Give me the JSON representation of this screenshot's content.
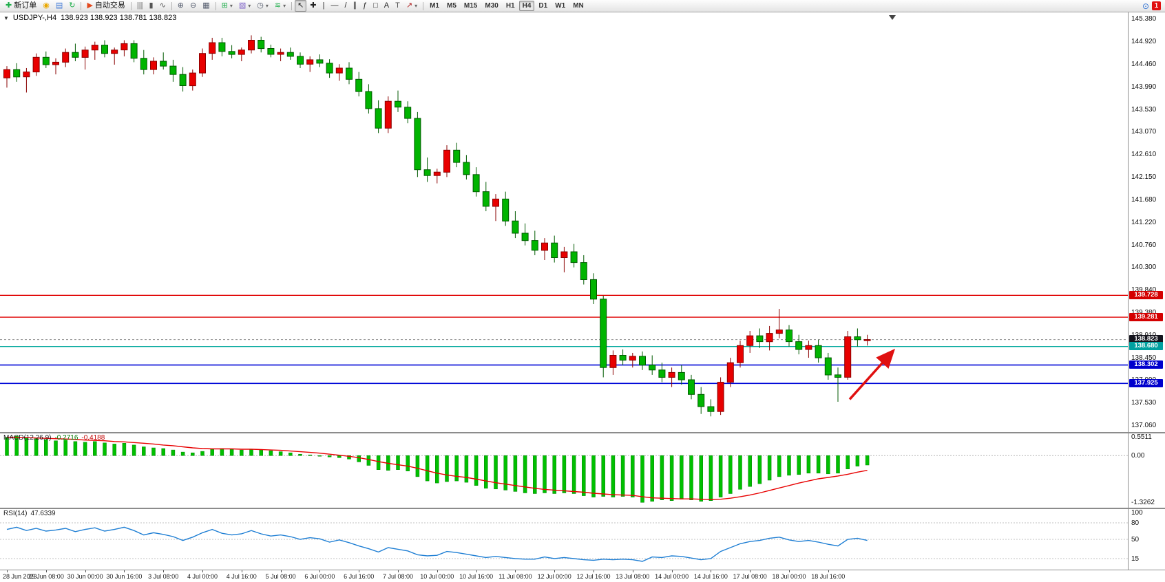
{
  "toolbar": {
    "buttons": [
      {
        "name": "new-order",
        "glyph": "✚",
        "color": "#1fae4b",
        "label": "新订单"
      },
      {
        "name": "chart-lightbulb",
        "glyph": "◉",
        "color": "#eaa800"
      },
      {
        "name": "profiles",
        "glyph": "▤",
        "color": "#3a76d6"
      },
      {
        "name": "refresh",
        "glyph": "↻",
        "color": "#1fae4b"
      },
      {
        "name": "autotrade",
        "glyph": "▶",
        "color": "#e34a1f",
        "label": "自动交易",
        "sep": true
      },
      {
        "name": "bar-chart-mode",
        "glyph": "|||",
        "color": "#555555",
        "sep": true
      },
      {
        "name": "candlestick-mode",
        "glyph": "▮",
        "color": "#555555"
      },
      {
        "name": "line-chart-mode",
        "glyph": "∿",
        "color": "#555555"
      },
      {
        "name": "zoom-in",
        "glyph": "⊕",
        "color": "#50586a",
        "sep": true
      },
      {
        "name": "zoom-out",
        "glyph": "⊖",
        "color": "#50586a"
      },
      {
        "name": "tile-windows",
        "glyph": "▦",
        "color": "#50586a"
      },
      {
        "name": "new-chart",
        "glyph": "⊞",
        "color": "#1fae4b",
        "dd": true,
        "sep": true
      },
      {
        "name": "chart-templates",
        "glyph": "▧",
        "color": "#7a5cc6",
        "dd": true
      },
      {
        "name": "periods",
        "glyph": "◷",
        "color": "#50586a",
        "dd": true
      },
      {
        "name": "indicators",
        "glyph": "≋",
        "color": "#1fae4b",
        "dd": true
      },
      {
        "name": "cursor-tool",
        "glyph": "↖",
        "color": "#222222",
        "sep": true,
        "active": true
      },
      {
        "name": "crosshair-tool",
        "glyph": "✚",
        "color": "#222222"
      },
      {
        "name": "vertical-line-tool",
        "glyph": "|",
        "color": "#222222"
      },
      {
        "name": "horizontal-line-tool",
        "glyph": "—",
        "color": "#222222"
      },
      {
        "name": "trendline-tool",
        "glyph": "/",
        "color": "#222222"
      },
      {
        "name": "channel-tool",
        "glyph": "∥",
        "color": "#222222"
      },
      {
        "name": "fibonacci-tool",
        "glyph": "ƒ",
        "color": "#222222"
      },
      {
        "name": "shapes-tool",
        "glyph": "□",
        "color": "#222222"
      },
      {
        "name": "text-tool",
        "glyph": "A",
        "color": "#222222"
      },
      {
        "name": "text-label-tool",
        "glyph": "T",
        "color": "#555555"
      },
      {
        "name": "arrows-tool",
        "glyph": "↗",
        "color": "#b02020",
        "dd": true
      }
    ],
    "timeframes": [
      "M1",
      "M5",
      "M15",
      "M30",
      "H1",
      "H4",
      "D1",
      "W1",
      "MN"
    ],
    "active_timeframe": "H4",
    "right": {
      "search_glyph": "⊙",
      "badge": "1"
    }
  },
  "chart": {
    "collapse_glyph": "▼",
    "symbol_period": "USDJPY-,H4",
    "ohlc_text": "138.923 138.923 138.781 138.823",
    "up_color": "#e80000",
    "up_border": "#8a0000",
    "down_color": "#00b400",
    "down_border": "#005a00",
    "price_axis": [
      "145.380",
      "144.920",
      "144.460",
      "143.990",
      "143.530",
      "143.070",
      "142.610",
      "142.150",
      "141.680",
      "141.220",
      "140.760",
      "140.300",
      "139.840",
      "139.380",
      "138.910",
      "138.450",
      "137.990",
      "137.530",
      "137.060"
    ],
    "price_tags": [
      {
        "text": "139.728",
        "price": 139.728,
        "bg": "#d40000"
      },
      {
        "text": "139.281",
        "price": 139.281,
        "bg": "#d40000"
      },
      {
        "text": "138.823",
        "price": 138.823,
        "bg": "#14141d"
      },
      {
        "text": "138.680",
        "price": 138.68,
        "bg": "#00a0a0"
      },
      {
        "text": "138.302",
        "price": 138.302,
        "bg": "#0000cd"
      },
      {
        "text": "137.925",
        "price": 137.925,
        "bg": "#0000cd"
      }
    ]
  },
  "macd": {
    "name": "MACD(12,26,9)",
    "value_main": "-0.2716",
    "value_signal": "-0.4188",
    "axis": [
      {
        "text": "0.5511",
        "value": 0.5511
      },
      {
        "text": "0.00",
        "value": 0
      },
      {
        "text": "-1.3262",
        "value": -1.3262
      }
    ]
  },
  "rsi": {
    "name": "RSI(14)",
    "value": "47.6339",
    "axis": [
      {
        "text": "100",
        "value": 100
      },
      {
        "text": "80",
        "value": 80
      },
      {
        "text": "50",
        "value": 50
      },
      {
        "text": "15",
        "value": 15
      }
    ]
  },
  "chart_data": {
    "type": "candlestick",
    "symbol": "USDJPY",
    "timeframe": "H4",
    "price_range": [
      136.93,
      145.52
    ],
    "bid": 138.823,
    "hlines": [
      {
        "price": 139.728,
        "color": "#e00000",
        "width": 1.4
      },
      {
        "price": 139.281,
        "color": "#e00000",
        "width": 1.4
      },
      {
        "price": 138.68,
        "color": "#00a89c",
        "width": 1.4
      },
      {
        "price": 138.302,
        "color": "#0008d8",
        "width": 1.6
      },
      {
        "price": 137.925,
        "color": "#0008d8",
        "width": 1.6
      }
    ],
    "arrow": {
      "from_bar": 86.2,
      "from_price": 137.6,
      "to_bar": 90.6,
      "to_price": 138.58,
      "color": "#e01010"
    },
    "ohlc": [
      [
        144.18,
        144.42,
        143.98,
        144.35
      ],
      [
        144.35,
        144.48,
        144.1,
        144.2
      ],
      [
        144.2,
        144.38,
        143.88,
        144.3
      ],
      [
        144.3,
        144.68,
        144.22,
        144.6
      ],
      [
        144.6,
        144.72,
        144.38,
        144.45
      ],
      [
        144.45,
        144.58,
        144.25,
        144.5
      ],
      [
        144.5,
        144.78,
        144.4,
        144.7
      ],
      [
        144.7,
        144.88,
        144.52,
        144.6
      ],
      [
        144.6,
        144.82,
        144.35,
        144.75
      ],
      [
        144.75,
        144.92,
        144.55,
        144.85
      ],
      [
        144.85,
        144.95,
        144.6,
        144.68
      ],
      [
        144.68,
        144.8,
        144.45,
        144.75
      ],
      [
        144.75,
        144.95,
        144.62,
        144.88
      ],
      [
        144.88,
        144.95,
        144.5,
        144.58
      ],
      [
        144.58,
        144.75,
        144.25,
        144.35
      ],
      [
        144.35,
        144.6,
        144.25,
        144.52
      ],
      [
        144.52,
        144.7,
        144.35,
        144.42
      ],
      [
        144.42,
        144.55,
        144.1,
        144.25
      ],
      [
        144.25,
        144.4,
        143.9,
        144.02
      ],
      [
        144.02,
        144.35,
        143.92,
        144.28
      ],
      [
        144.28,
        144.78,
        144.2,
        144.68
      ],
      [
        144.68,
        145.0,
        144.55,
        144.9
      ],
      [
        144.9,
        145.0,
        144.62,
        144.72
      ],
      [
        144.72,
        144.85,
        144.58,
        144.66
      ],
      [
        144.66,
        144.8,
        144.52,
        144.75
      ],
      [
        144.75,
        145.05,
        144.68,
        144.95
      ],
      [
        144.95,
        145.02,
        144.7,
        144.78
      ],
      [
        144.78,
        144.86,
        144.6,
        144.66
      ],
      [
        144.66,
        144.78,
        144.52,
        144.7
      ],
      [
        144.7,
        144.8,
        144.55,
        144.62
      ],
      [
        144.62,
        144.7,
        144.38,
        144.46
      ],
      [
        144.46,
        144.62,
        144.3,
        144.55
      ],
      [
        144.55,
        144.66,
        144.4,
        144.48
      ],
      [
        144.48,
        144.56,
        144.18,
        144.28
      ],
      [
        144.28,
        144.46,
        144.12,
        144.38
      ],
      [
        144.38,
        144.5,
        144.05,
        144.15
      ],
      [
        144.15,
        144.3,
        143.8,
        143.9
      ],
      [
        143.9,
        144.05,
        143.45,
        143.55
      ],
      [
        143.55,
        143.72,
        143.05,
        143.15
      ],
      [
        143.15,
        143.8,
        143.05,
        143.7
      ],
      [
        143.7,
        143.92,
        143.48,
        143.58
      ],
      [
        143.58,
        143.7,
        143.25,
        143.35
      ],
      [
        143.35,
        143.48,
        142.15,
        142.3
      ],
      [
        142.3,
        142.55,
        142.05,
        142.18
      ],
      [
        142.18,
        142.32,
        142.02,
        142.25
      ],
      [
        142.25,
        142.8,
        142.15,
        142.7
      ],
      [
        142.7,
        142.85,
        142.35,
        142.45
      ],
      [
        142.45,
        142.6,
        142.1,
        142.2
      ],
      [
        142.2,
        142.35,
        141.75,
        141.85
      ],
      [
        141.85,
        142.05,
        141.45,
        141.55
      ],
      [
        141.55,
        141.8,
        141.25,
        141.7
      ],
      [
        141.7,
        141.85,
        141.15,
        141.25
      ],
      [
        141.25,
        141.45,
        140.9,
        141.0
      ],
      [
        141.0,
        141.2,
        140.75,
        140.85
      ],
      [
        140.85,
        141.05,
        140.55,
        140.65
      ],
      [
        140.65,
        140.9,
        140.45,
        140.8
      ],
      [
        140.8,
        140.95,
        140.4,
        140.5
      ],
      [
        140.5,
        140.72,
        140.2,
        140.62
      ],
      [
        140.62,
        140.78,
        140.3,
        140.4
      ],
      [
        140.4,
        140.55,
        139.95,
        140.05
      ],
      [
        140.05,
        140.18,
        139.55,
        139.65
      ],
      [
        139.65,
        139.72,
        138.05,
        138.25
      ],
      [
        138.25,
        138.6,
        138.1,
        138.5
      ],
      [
        138.5,
        138.62,
        138.3,
        138.4
      ],
      [
        138.4,
        138.55,
        138.25,
        138.48
      ],
      [
        138.48,
        138.58,
        138.2,
        138.3
      ],
      [
        138.3,
        138.5,
        138.1,
        138.2
      ],
      [
        138.2,
        138.35,
        137.95,
        138.05
      ],
      [
        138.05,
        138.25,
        137.85,
        138.15
      ],
      [
        138.15,
        138.3,
        137.9,
        138.0
      ],
      [
        138.0,
        138.1,
        137.6,
        137.7
      ],
      [
        137.7,
        137.85,
        137.3,
        137.45
      ],
      [
        137.45,
        137.6,
        137.25,
        137.35
      ],
      [
        137.35,
        138.05,
        137.28,
        137.95
      ],
      [
        137.95,
        138.45,
        137.85,
        138.35
      ],
      [
        138.35,
        138.8,
        138.25,
        138.7
      ],
      [
        138.7,
        139.0,
        138.55,
        138.9
      ],
      [
        138.9,
        139.05,
        138.65,
        138.78
      ],
      [
        138.78,
        139.1,
        138.6,
        138.95
      ],
      [
        138.95,
        139.45,
        138.85,
        139.02
      ],
      [
        139.02,
        139.12,
        138.68,
        138.78
      ],
      [
        138.78,
        138.92,
        138.52,
        138.62
      ],
      [
        138.62,
        138.8,
        138.45,
        138.7
      ],
      [
        138.7,
        138.82,
        138.35,
        138.45
      ],
      [
        138.45,
        138.55,
        138.0,
        138.1
      ],
      [
        138.1,
        138.25,
        137.55,
        138.05
      ],
      [
        138.05,
        139.0,
        138.0,
        138.88
      ],
      [
        138.88,
        139.05,
        138.68,
        138.82
      ],
      [
        138.8,
        138.92,
        138.7,
        138.823
      ]
    ],
    "time_labels": [
      "28 Jun 2023",
      "29 Jun 08:00",
      "30 Jun 00:00",
      "30 Jun 16:00",
      "3 Jul 08:00",
      "4 Jul 00:00",
      "4 Jul 16:00",
      "5 Jul 08:00",
      "6 Jul 00:00",
      "6 Jul 16:00",
      "7 Jul 08:00",
      "10 Jul 00:00",
      "10 Jul 16:00",
      "11 Jul 08:00",
      "12 Jul 00:00",
      "12 Jul 16:00",
      "13 Jul 08:00",
      "14 Jul 00:00",
      "14 Jul 16:00",
      "17 Jul 08:00",
      "18 Jul 00:00",
      "18 Jul 16:00"
    ],
    "bars_per_label": 4,
    "macd": {
      "range": [
        -1.48,
        0.63
      ],
      "histogram": [
        0.52,
        0.55,
        0.5,
        0.48,
        0.45,
        0.42,
        0.44,
        0.4,
        0.38,
        0.4,
        0.36,
        0.33,
        0.35,
        0.3,
        0.25,
        0.22,
        0.2,
        0.16,
        0.1,
        0.08,
        0.12,
        0.18,
        0.2,
        0.18,
        0.16,
        0.18,
        0.17,
        0.14,
        0.11,
        0.08,
        0.04,
        0.02,
        0.0,
        -0.04,
        -0.06,
        -0.1,
        -0.18,
        -0.28,
        -0.4,
        -0.42,
        -0.4,
        -0.44,
        -0.6,
        -0.72,
        -0.78,
        -0.74,
        -0.72,
        -0.76,
        -0.85,
        -0.93,
        -0.95,
        -0.98,
        -1.02,
        -1.06,
        -1.08,
        -1.06,
        -1.08,
        -1.06,
        -1.08,
        -1.14,
        -1.18,
        -1.16,
        -1.18,
        -1.16,
        -1.18,
        -1.33,
        -1.3,
        -1.26,
        -1.28,
        -1.24,
        -1.26,
        -1.3,
        -1.28,
        -1.18,
        -1.08,
        -0.96,
        -0.88,
        -0.8,
        -0.7,
        -0.6,
        -0.56,
        -0.54,
        -0.5,
        -0.5,
        -0.52,
        -0.5,
        -0.38,
        -0.3,
        -0.27
      ],
      "signal": [
        0.52,
        0.52,
        0.51,
        0.5,
        0.49,
        0.48,
        0.47,
        0.46,
        0.44,
        0.43,
        0.42,
        0.4,
        0.39,
        0.37,
        0.35,
        0.33,
        0.3,
        0.28,
        0.25,
        0.22,
        0.2,
        0.19,
        0.19,
        0.19,
        0.18,
        0.18,
        0.17,
        0.16,
        0.15,
        0.13,
        0.11,
        0.09,
        0.07,
        0.04,
        0.01,
        -0.02,
        -0.06,
        -0.11,
        -0.17,
        -0.22,
        -0.26,
        -0.3,
        -0.36,
        -0.43,
        -0.5,
        -0.55,
        -0.59,
        -0.62,
        -0.67,
        -0.72,
        -0.77,
        -0.81,
        -0.85,
        -0.89,
        -0.93,
        -0.96,
        -0.98,
        -1.0,
        -1.02,
        -1.04,
        -1.07,
        -1.09,
        -1.11,
        -1.12,
        -1.13,
        -1.17,
        -1.2,
        -1.21,
        -1.22,
        -1.23,
        -1.23,
        -1.24,
        -1.25,
        -1.24,
        -1.21,
        -1.17,
        -1.12,
        -1.06,
        -0.99,
        -0.92,
        -0.85,
        -0.78,
        -0.72,
        -0.66,
        -0.62,
        -0.58,
        -0.53,
        -0.47,
        -0.42
      ],
      "hist_color": "#00c000",
      "signal_color": "#e80000"
    },
    "rsi": {
      "range": [
        -5,
        105
      ],
      "levels": [
        80,
        50,
        15
      ],
      "color": "#1f7fd4",
      "values": [
        68,
        72,
        66,
        70,
        65,
        67,
        70,
        64,
        68,
        71,
        65,
        68,
        72,
        66,
        58,
        62,
        59,
        55,
        48,
        54,
        62,
        68,
        61,
        58,
        60,
        66,
        60,
        56,
        58,
        55,
        50,
        53,
        51,
        45,
        49,
        44,
        38,
        33,
        27,
        35,
        32,
        29,
        22,
        20,
        21,
        28,
        26,
        23,
        20,
        17,
        19,
        17,
        15,
        14,
        14,
        18,
        15,
        17,
        15,
        13,
        12,
        14,
        13,
        14,
        13,
        10,
        18,
        17,
        20,
        19,
        16,
        13,
        15,
        28,
        35,
        42,
        46,
        48,
        52,
        54,
        49,
        46,
        48,
        45,
        41,
        38,
        50,
        52,
        48
      ]
    }
  }
}
